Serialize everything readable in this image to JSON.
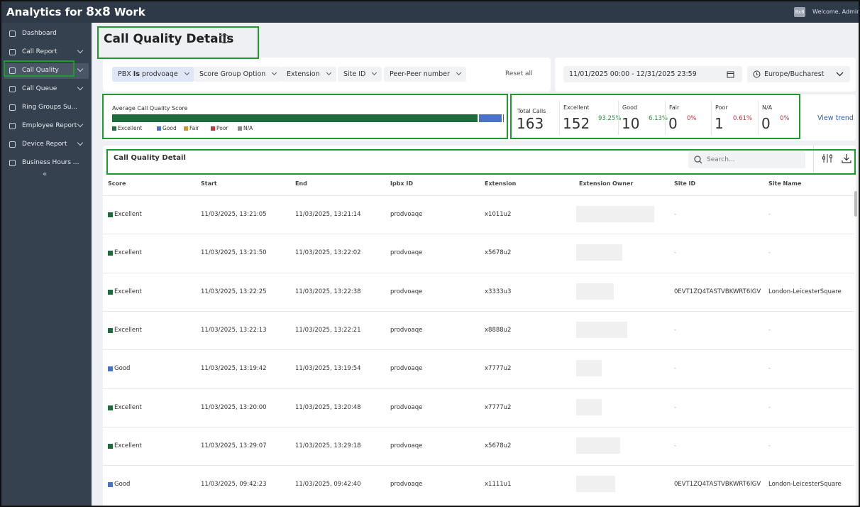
{
  "app": {
    "brand": "Analytics for",
    "brand_logo": "8x8",
    "brand_suffix": "Work",
    "user_badge": "8x8",
    "welcome": "Welcome, Admin"
  },
  "sidebar": {
    "items": [
      {
        "label": "Dashboard",
        "expandable": false
      },
      {
        "label": "Call Report",
        "expandable": true
      },
      {
        "label": "Call Quality",
        "expandable": true,
        "active": true
      },
      {
        "label": "Call Queue",
        "expandable": true
      },
      {
        "label": "Ring Groups Su...",
        "expandable": false
      },
      {
        "label": "Employee Report",
        "expandable": true
      },
      {
        "label": "Device Report",
        "expandable": true
      },
      {
        "label": "Business Hours ...",
        "expandable": false
      }
    ]
  },
  "page": {
    "title": "Call Quality Details",
    "help": "?"
  },
  "filters": {
    "chips": [
      {
        "field": "PBX",
        "op": "Is",
        "value": "prodvoaqe",
        "active": true
      },
      {
        "field": "Score Group Option"
      },
      {
        "field": "Extension"
      },
      {
        "field": "Site ID"
      },
      {
        "field": "Peer-Peer number"
      }
    ],
    "reset": "Reset all",
    "date_range": "11/01/2025 00:00 - 12/31/2025 23:59",
    "timezone": "Europe/Bucharest"
  },
  "summary": {
    "title": "Average Call Quality Score",
    "total": {
      "label": "Total Calls",
      "value": 163
    },
    "groups": [
      {
        "label": "Excellent",
        "value": 152,
        "percent": "93.25%",
        "color": "#1f6b3b",
        "percent_color": "#2e8b3e"
      },
      {
        "label": "Good",
        "value": 10,
        "percent": "6.13%",
        "color": "#4a72c9",
        "percent_color": "#2e8b3e"
      },
      {
        "label": "Fair",
        "value": 0,
        "percent": "0%",
        "color": "#c8962a",
        "percent_color": "#c0333a"
      },
      {
        "label": "Poor",
        "value": 1,
        "percent": "0.61%",
        "color": "#c8333a",
        "percent_color": "#c0333a"
      },
      {
        "label": "N/A",
        "value": 0,
        "percent": "0%",
        "color": "#888888",
        "percent_color": "#c0333a"
      }
    ],
    "view_trend": "View trend"
  },
  "table": {
    "title": "Call Quality Detail",
    "search_placeholder": "Search...",
    "columns": [
      "Score",
      "Start",
      "End",
      "Ipbx ID",
      "Extension",
      "Extension Owner",
      "Site ID",
      "Site Name"
    ],
    "rows": [
      {
        "score": "Excellent",
        "start": "11/03/2025, 13:21:05",
        "end": "11/03/2025, 13:21:14",
        "ipbx": "prodvoaqe",
        "extension": "x1011u2",
        "site_id": "-",
        "site_name": "-"
      },
      {
        "score": "Excellent",
        "start": "11/03/2025, 13:21:50",
        "end": "11/03/2025, 13:22:02",
        "ipbx": "prodvoaqe",
        "extension": "x5678u2",
        "site_id": "-",
        "site_name": "-"
      },
      {
        "score": "Excellent",
        "start": "11/03/2025, 13:22:25",
        "end": "11/03/2025, 13:22:38",
        "ipbx": "prodvoaqe",
        "extension": "x3333u3",
        "site_id": "0EVT1ZQ4TASTVBKWRT6IGV",
        "site_name": "London-LeicesterSquare"
      },
      {
        "score": "Excellent",
        "start": "11/03/2025, 13:22:13",
        "end": "11/03/2025, 13:22:21",
        "ipbx": "prodvoaqe",
        "extension": "x8888u2",
        "site_id": "-",
        "site_name": "-"
      },
      {
        "score": "Good",
        "start": "11/03/2025, 13:19:42",
        "end": "11/03/2025, 13:19:54",
        "ipbx": "prodvoaqe",
        "extension": "x7777u2",
        "site_id": "-",
        "site_name": "-"
      },
      {
        "score": "Excellent",
        "start": "11/03/2025, 13:20:00",
        "end": "11/03/2025, 13:20:48",
        "ipbx": "prodvoaqe",
        "extension": "x7777u2",
        "site_id": "-",
        "site_name": "-"
      },
      {
        "score": "Excellent",
        "start": "11/03/2025, 13:29:07",
        "end": "11/03/2025, 13:29:18",
        "ipbx": "prodvoaqe",
        "extension": "x5678u2",
        "site_id": "-",
        "site_name": "-"
      },
      {
        "score": "Good",
        "start": "11/03/2025, 09:42:23",
        "end": "11/03/2025, 09:42:40",
        "ipbx": "prodvoaqe",
        "extension": "x1111u1",
        "site_id": "0EVT1ZQ4TASTVBKWRT6IGV",
        "site_name": "London-LeicesterSquare"
      }
    ]
  }
}
